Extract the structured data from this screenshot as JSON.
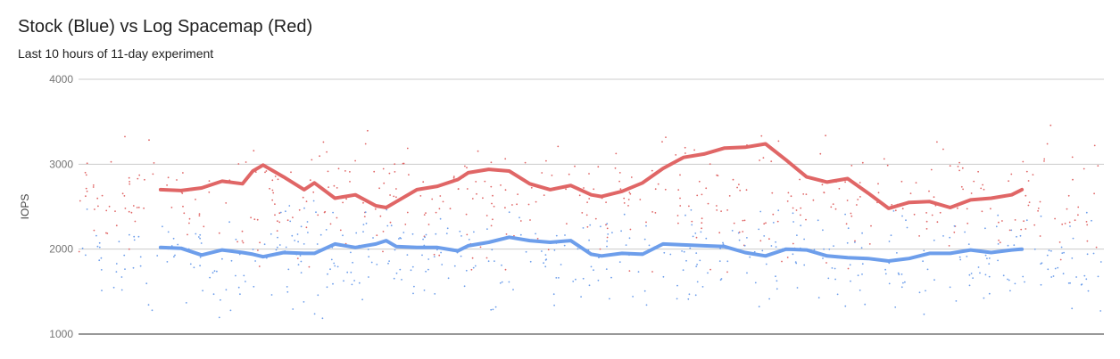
{
  "chart_data": {
    "type": "scatter",
    "title": "Stock (Blue) vs Log Spacemap (Red)",
    "subtitle": "Last 10 hours of 11-day experiment",
    "xlabel": "",
    "ylabel": "IOPS",
    "ylim": [
      1000,
      4000
    ],
    "yticks": [
      "1000",
      "2000",
      "3000",
      "4000"
    ],
    "grid": true,
    "legend": "none",
    "x_range": [
      0,
      1
    ],
    "series": [
      {
        "color": "#e06666",
        "points": {
          "scatter_count": 480,
          "scatter_mean": 2600,
          "scatter_spread": 800,
          "scatter_seed": 7
        },
        "trend_x": [
          0.08,
          0.1,
          0.12,
          0.14,
          0.16,
          0.17,
          0.18,
          0.2,
          0.22,
          0.23,
          0.25,
          0.27,
          0.29,
          0.3,
          0.31,
          0.33,
          0.35,
          0.37,
          0.38,
          0.4,
          0.42,
          0.44,
          0.46,
          0.48,
          0.5,
          0.51,
          0.53,
          0.55,
          0.57,
          0.59,
          0.61,
          0.63,
          0.65,
          0.67,
          0.69,
          0.71,
          0.73,
          0.75,
          0.77,
          0.79,
          0.81,
          0.83,
          0.85,
          0.87,
          0.89,
          0.91,
          0.92
        ],
        "trend_y": [
          2700,
          2690,
          2720,
          2800,
          2770,
          2920,
          2990,
          2850,
          2700,
          2780,
          2600,
          2640,
          2510,
          2490,
          2560,
          2700,
          2740,
          2820,
          2900,
          2940,
          2920,
          2770,
          2700,
          2750,
          2640,
          2620,
          2680,
          2780,
          2950,
          3080,
          3120,
          3190,
          3200,
          3240,
          3050,
          2850,
          2790,
          2830,
          2660,
          2480,
          2550,
          2560,
          2490,
          2580,
          2600,
          2640,
          2700
        ]
      },
      {
        "color": "#6d9eeb",
        "points": {
          "scatter_count": 480,
          "scatter_mean": 1900,
          "scatter_spread": 650,
          "scatter_seed": 31
        },
        "trend_x": [
          0.08,
          0.1,
          0.12,
          0.14,
          0.16,
          0.17,
          0.18,
          0.2,
          0.22,
          0.23,
          0.25,
          0.27,
          0.29,
          0.3,
          0.31,
          0.33,
          0.35,
          0.37,
          0.38,
          0.4,
          0.42,
          0.44,
          0.46,
          0.48,
          0.5,
          0.51,
          0.53,
          0.55,
          0.57,
          0.59,
          0.61,
          0.63,
          0.65,
          0.67,
          0.69,
          0.71,
          0.73,
          0.75,
          0.77,
          0.79,
          0.81,
          0.83,
          0.85,
          0.87,
          0.89,
          0.91,
          0.92
        ],
        "trend_y": [
          2020,
          2010,
          1930,
          1990,
          1960,
          1940,
          1910,
          1960,
          1950,
          1950,
          2060,
          2020,
          2060,
          2100,
          2030,
          2020,
          2020,
          1980,
          2040,
          2080,
          2140,
          2100,
          2080,
          2100,
          1940,
          1920,
          1950,
          1940,
          2060,
          2050,
          2040,
          2030,
          1960,
          1920,
          2000,
          1990,
          1920,
          1900,
          1890,
          1860,
          1890,
          1950,
          1950,
          1990,
          1960,
          1990,
          2000
        ]
      }
    ]
  }
}
